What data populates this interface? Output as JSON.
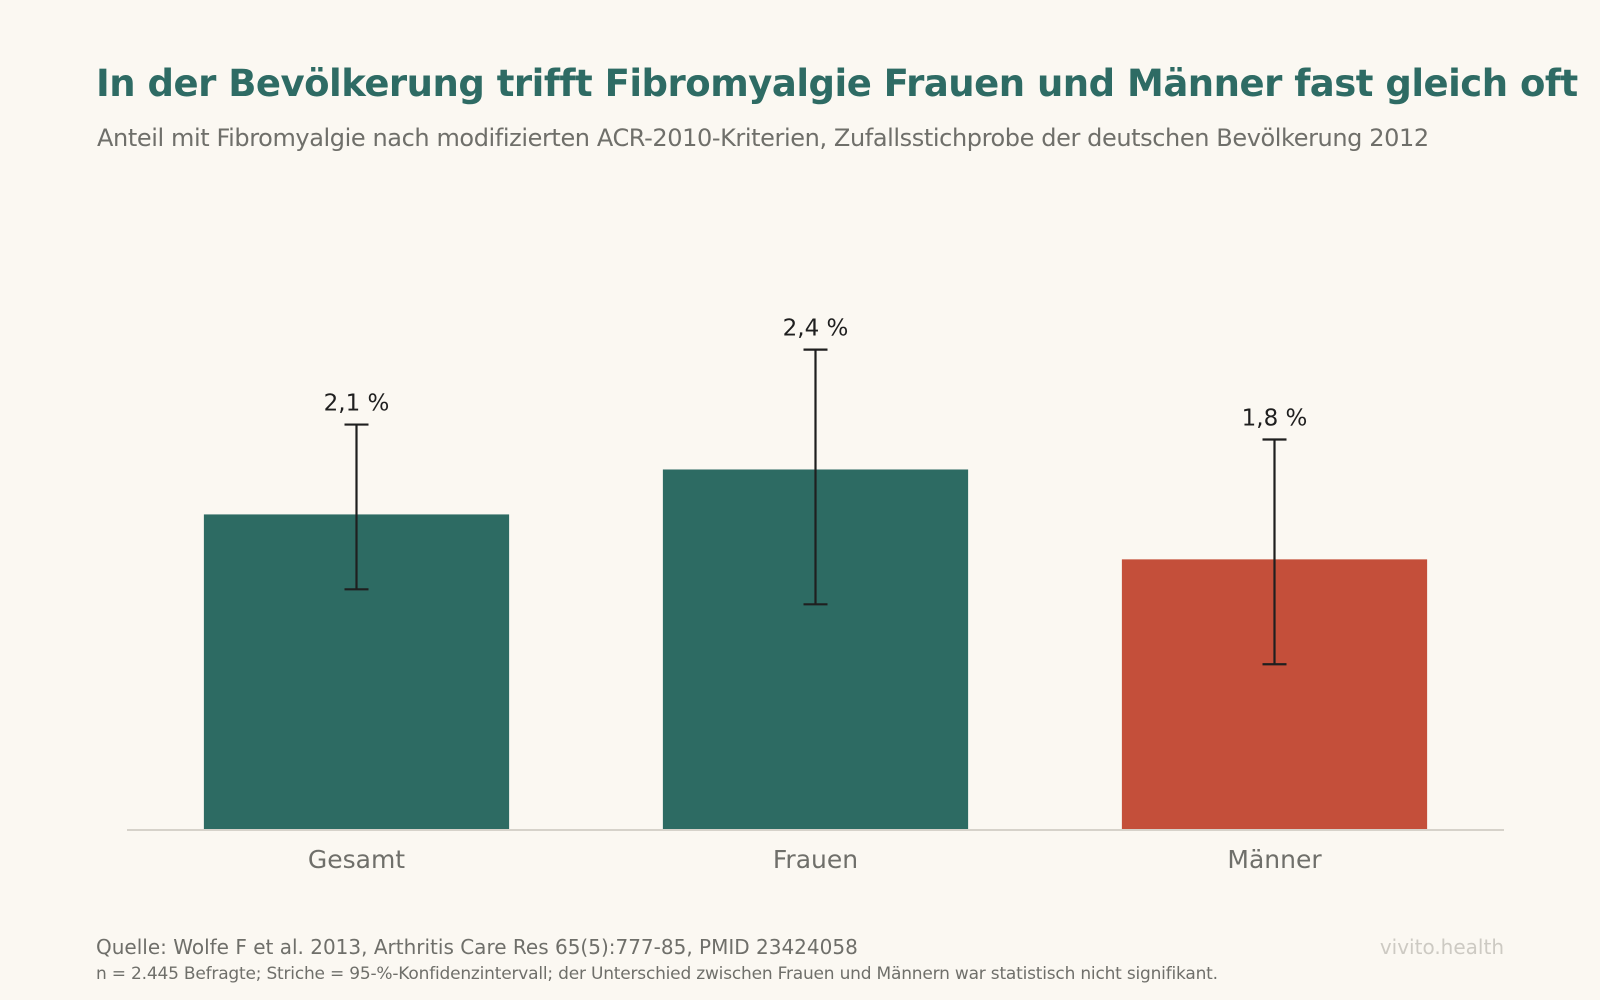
{
  "title": "In der Bevölkerung trifft Fibromyalgie Frauen und Männer fast gleich oft",
  "subtitle": "Anteil mit Fibromyalgie nach modifizierten ACR-2010-Kriterien, Zufallsstichprobe der deutschen Bevölkerung 2012",
  "footer": {
    "source": "Quelle: Wolfe F et al. 2013, Arthritis Care Res 65(5):777-85, PMID 23424058",
    "note": "n = 2.445 Befragte; Striche = 95-%-Konfidenzintervall; der Unterschied zwischen Frauen und Männern war statistisch nicht signifikant.",
    "brand": "vivito.health"
  },
  "chart_data": {
    "type": "bar",
    "categories": [
      "Gesamt",
      "Frauen",
      "Männer"
    ],
    "values": [
      2.1,
      2.4,
      1.8
    ],
    "value_labels": [
      "2,1 %",
      "2,4 %",
      "1,8 %"
    ],
    "ci_low": [
      1.6,
      1.5,
      1.1
    ],
    "ci_high": [
      2.7,
      3.2,
      2.6
    ],
    "colors": [
      "#2d6b63",
      "#2d6b63",
      "#c44f3a"
    ],
    "ylim": [
      0,
      5
    ],
    "xlabel": "",
    "ylabel": "",
    "grid": false,
    "legend": "none"
  }
}
